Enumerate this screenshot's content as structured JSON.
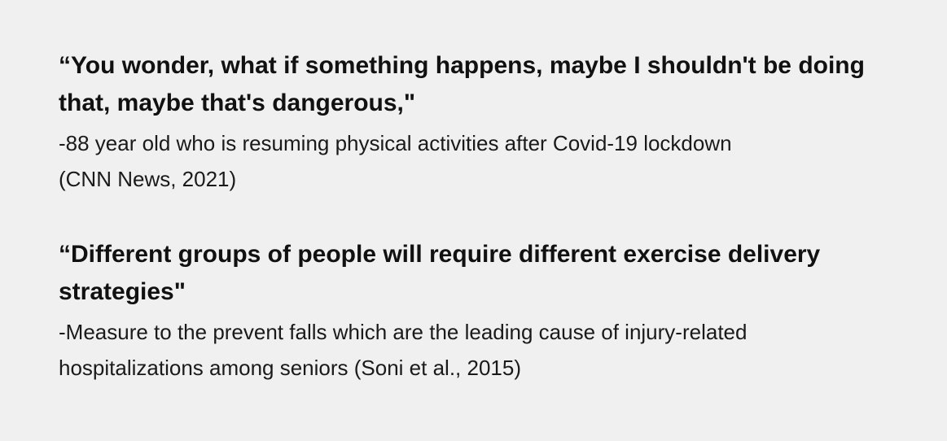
{
  "quotes": [
    {
      "text": "“You wonder, what if something happens, maybe I shouldn't be doing that, maybe that's dangerous,\"",
      "attribution_lines": [
        "-88 year old who is resuming physical activities after Covid-19 lockdown",
        "(CNN News, 2021)"
      ]
    },
    {
      "text": "“Different groups of people will require different exercise delivery strategies\"",
      "attribution_lines": [
        "-Measure to the prevent falls which are the leading cause of injury-related",
        "hospitalizations among seniors (Soni et al., 2015)"
      ]
    }
  ]
}
